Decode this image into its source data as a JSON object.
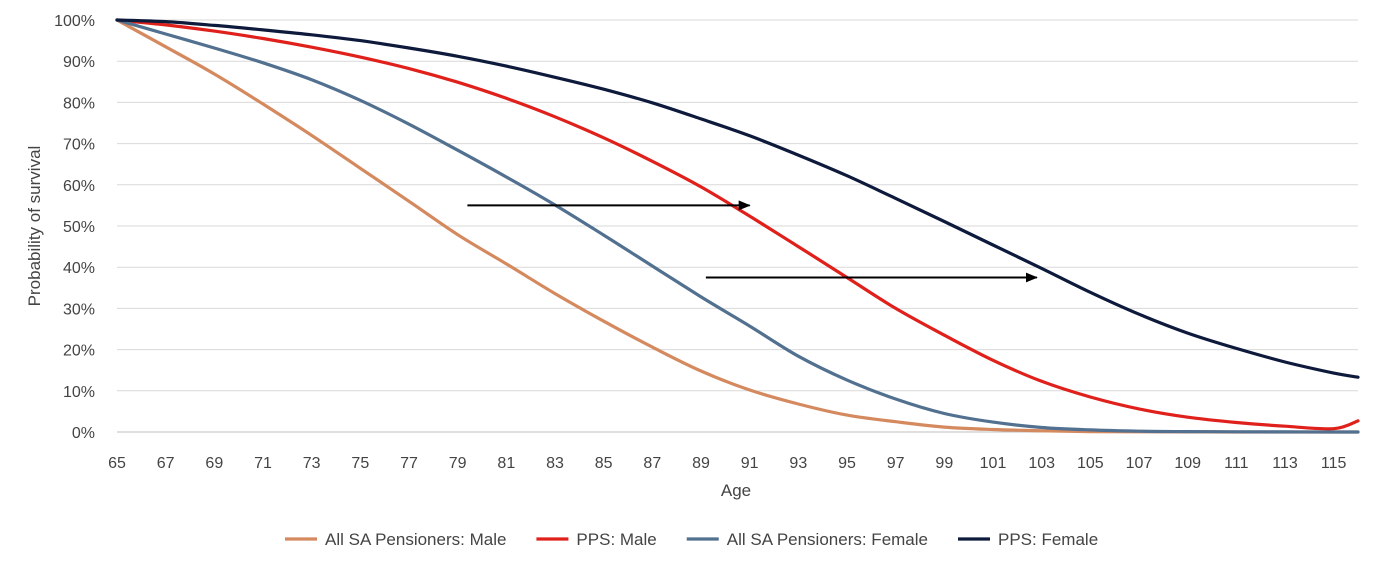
{
  "chart_data": {
    "type": "line",
    "xlabel": "Age",
    "ylabel": "Probability of survival",
    "x": [
      65,
      67,
      69,
      71,
      73,
      75,
      77,
      79,
      81,
      83,
      85,
      87,
      89,
      91,
      93,
      95,
      97,
      99,
      101,
      103,
      105,
      107,
      109,
      111,
      113,
      115,
      116
    ],
    "x_tick_labels": [
      "65",
      "67",
      "69",
      "71",
      "73",
      "75",
      "77",
      "79",
      "81",
      "83",
      "85",
      "87",
      "89",
      "91",
      "93",
      "95",
      "97",
      "99",
      "101",
      "103",
      "105",
      "107",
      "109",
      "111",
      "113",
      "115"
    ],
    "y_tick_labels": [
      "0%",
      "10%",
      "20%",
      "30%",
      "40%",
      "50%",
      "60%",
      "70%",
      "80%",
      "90%",
      "100%"
    ],
    "xlim": [
      65,
      116
    ],
    "ylim": [
      0,
      100
    ],
    "grid": "horizontal",
    "legend_position": "bottom",
    "series": [
      {
        "name": "All SA Pensioners: Male",
        "color": "#d4895f",
        "values": [
          100,
          93.5,
          86.9,
          79.6,
          72.0,
          64.0,
          56.0,
          47.9,
          40.8,
          33.6,
          26.9,
          20.6,
          14.8,
          10.2,
          6.8,
          4.1,
          2.5,
          1.2,
          0.6,
          0.3,
          0.1,
          0.05,
          0.02,
          0.01,
          0,
          0,
          0
        ]
      },
      {
        "name": "PPS: Male",
        "color": "#e0201b",
        "values": [
          100,
          98.8,
          97.3,
          95.5,
          93.4,
          91.0,
          88.2,
          84.9,
          81.0,
          76.5,
          71.4,
          65.7,
          59.5,
          52.4,
          45.0,
          37.5,
          30.0,
          23.5,
          17.4,
          12.3,
          8.5,
          5.6,
          3.6,
          2.3,
          1.4,
          0.8,
          2.7
        ]
      },
      {
        "name": "All SA Pensioners: Female",
        "color": "#52708f",
        "values": [
          100,
          96.6,
          93.2,
          89.6,
          85.5,
          80.5,
          74.7,
          68.4,
          61.9,
          55.1,
          47.8,
          40.3,
          32.8,
          25.7,
          18.4,
          12.6,
          8.0,
          4.5,
          2.4,
          1.1,
          0.5,
          0.2,
          0.1,
          0.05,
          0.02,
          0.01,
          0.01
        ]
      },
      {
        "name": "PPS: Female",
        "color": "#0e1a3c",
        "values": [
          100,
          99.6,
          98.7,
          97.6,
          96.4,
          95.0,
          93.2,
          91.2,
          88.8,
          86.1,
          83.2,
          79.9,
          76.0,
          71.9,
          67.2,
          62.2,
          56.7,
          51.1,
          45.4,
          39.7,
          33.9,
          28.6,
          24.0,
          20.3,
          17.0,
          14.3,
          13.3
        ]
      }
    ],
    "annotations": [
      {
        "type": "arrow",
        "from_age": 79.4,
        "to_age": 91.0,
        "at_value": 55
      },
      {
        "type": "arrow",
        "from_age": 89.2,
        "to_age": 102.8,
        "at_value": 37.5
      }
    ]
  }
}
